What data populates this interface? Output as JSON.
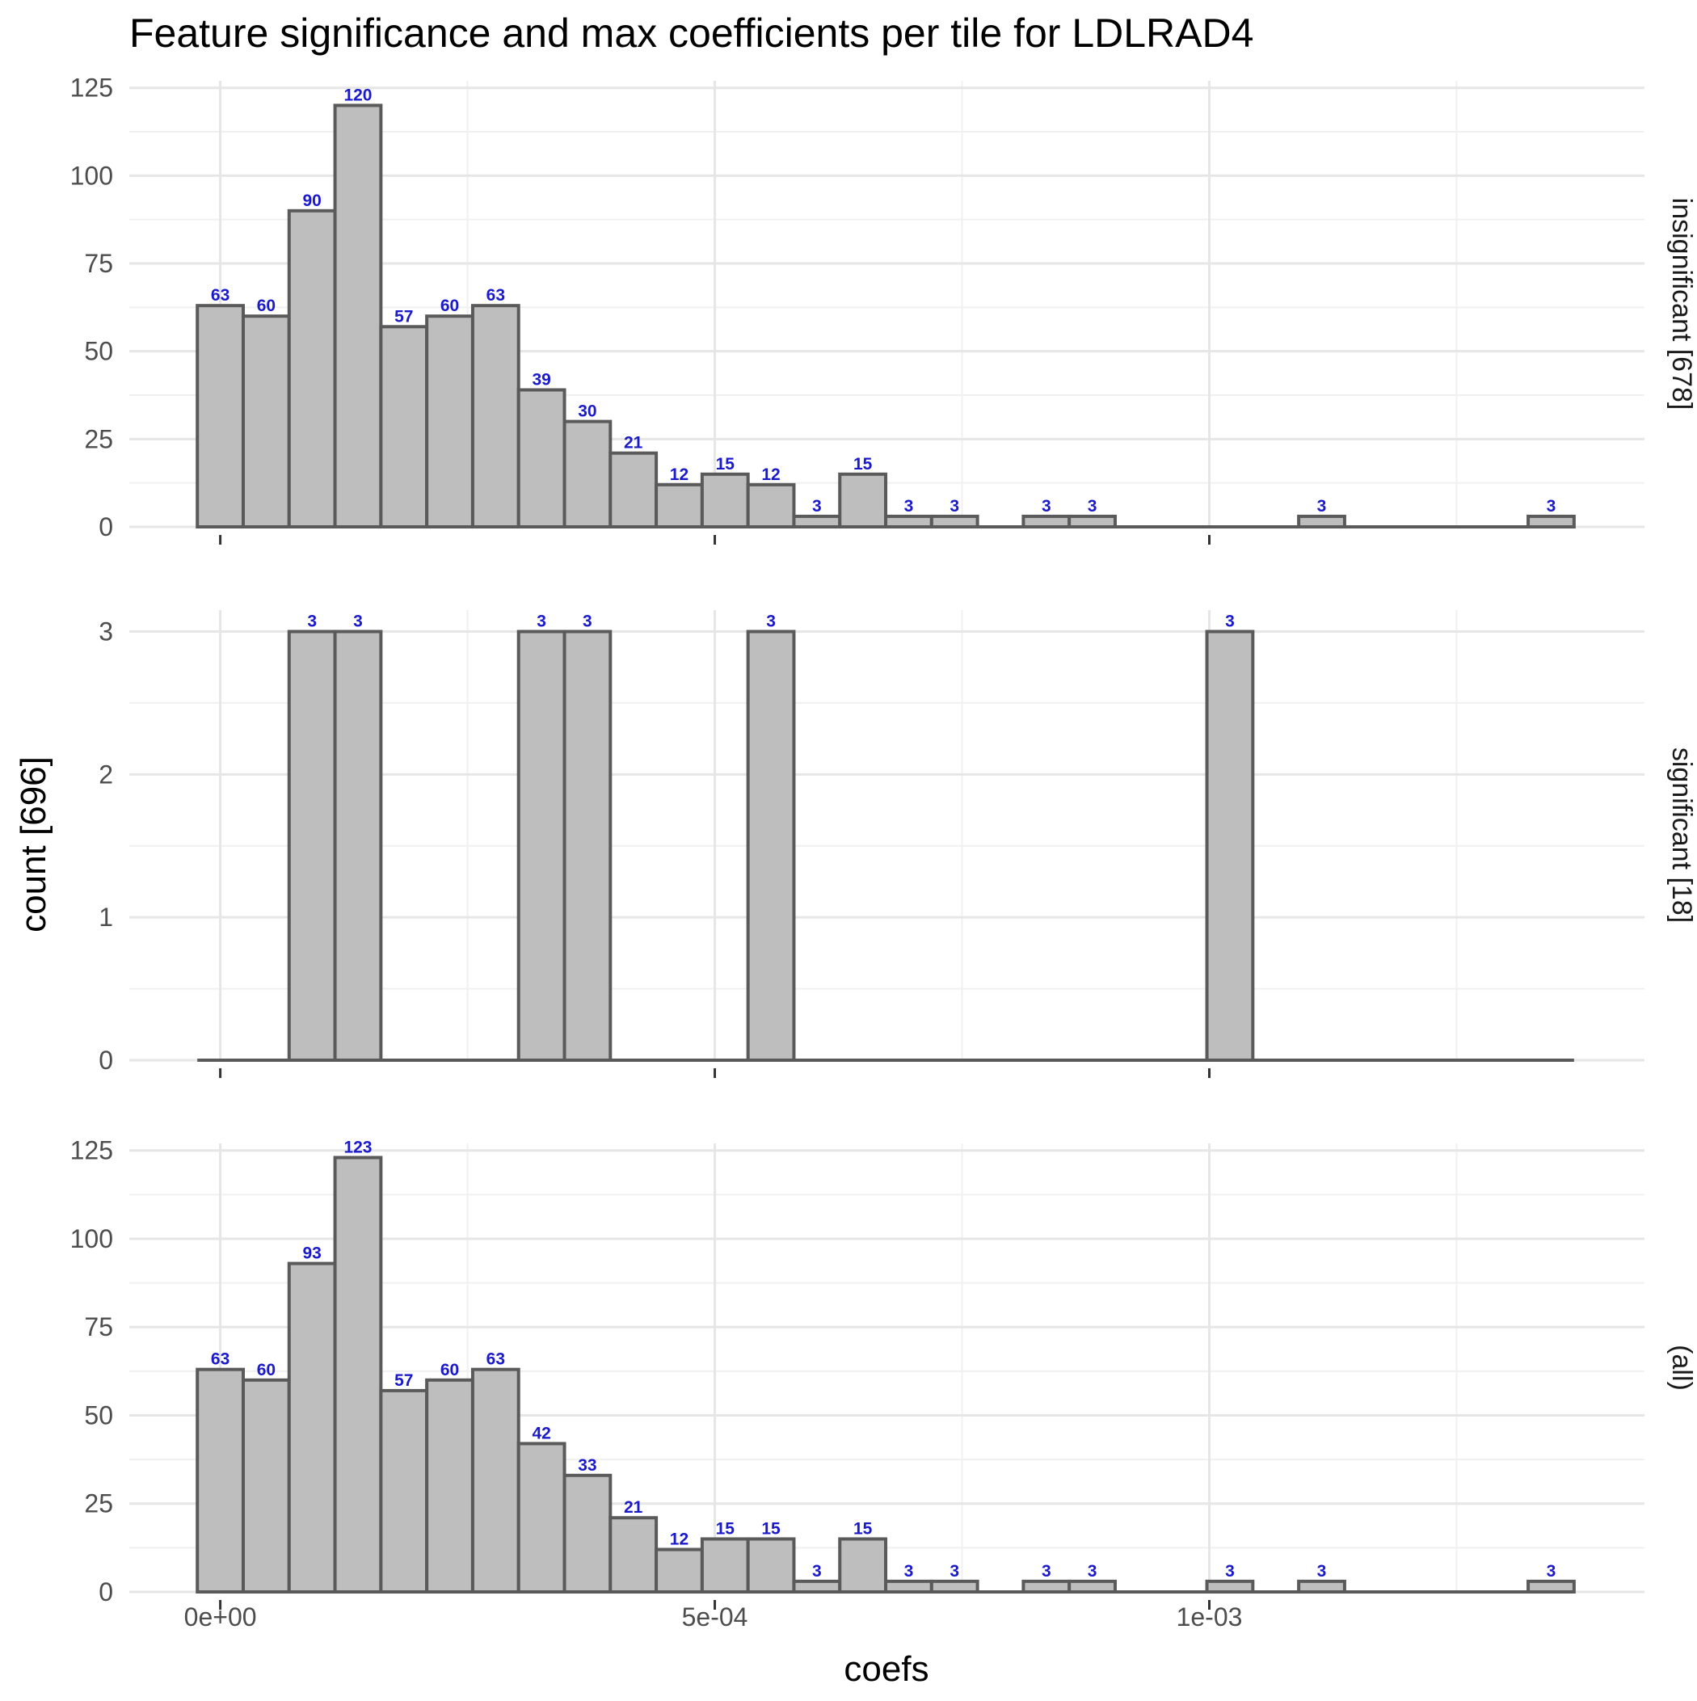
{
  "chart_data": {
    "type": "bar",
    "title": "Feature significance and max coefficients per tile for LDLRAD4",
    "xlabel": "coefs",
    "ylabel": "count [696]",
    "x_ticks": [
      {
        "value": 0.0,
        "label": "0e+00"
      },
      {
        "value": 0.0005,
        "label": "5e-04"
      },
      {
        "value": 0.001,
        "label": "1e-03"
      }
    ],
    "xlim": [
      -9.2e-05,
      0.00144
    ],
    "bins": {
      "start": -2.32e-05,
      "width": 4.64e-05,
      "count": 30
    },
    "bar_fill": "#bebebe",
    "bar_stroke": "#5a5a5a",
    "label_color": "#1a1acc",
    "grid": true,
    "facets": [
      {
        "strip": "insignificant [678]",
        "ylim": [
          0,
          127
        ],
        "y_ticks": [
          0,
          25,
          50,
          75,
          100,
          125
        ],
        "counts": [
          63,
          60,
          90,
          120,
          57,
          60,
          63,
          39,
          30,
          21,
          12,
          15,
          12,
          3,
          15,
          3,
          3,
          0,
          3,
          3,
          0,
          0,
          0,
          0,
          3,
          0,
          0,
          0,
          0,
          3
        ]
      },
      {
        "strip": "significant [18]",
        "ylim": [
          0,
          3.15
        ],
        "y_ticks": [
          0,
          1,
          2,
          3
        ],
        "counts": [
          0,
          0,
          3,
          3,
          0,
          0,
          0,
          3,
          3,
          0,
          0,
          0,
          3,
          0,
          0,
          0,
          0,
          0,
          0,
          0,
          0,
          0,
          3,
          0,
          0,
          0,
          0,
          0,
          0,
          0
        ]
      },
      {
        "strip": "(all)",
        "ylim": [
          0,
          127
        ],
        "y_ticks": [
          0,
          25,
          50,
          75,
          100,
          125
        ],
        "counts": [
          63,
          60,
          93,
          123,
          57,
          60,
          63,
          42,
          33,
          21,
          12,
          15,
          15,
          3,
          15,
          3,
          3,
          0,
          3,
          3,
          0,
          0,
          3,
          0,
          3,
          0,
          0,
          0,
          0,
          3
        ]
      }
    ]
  }
}
